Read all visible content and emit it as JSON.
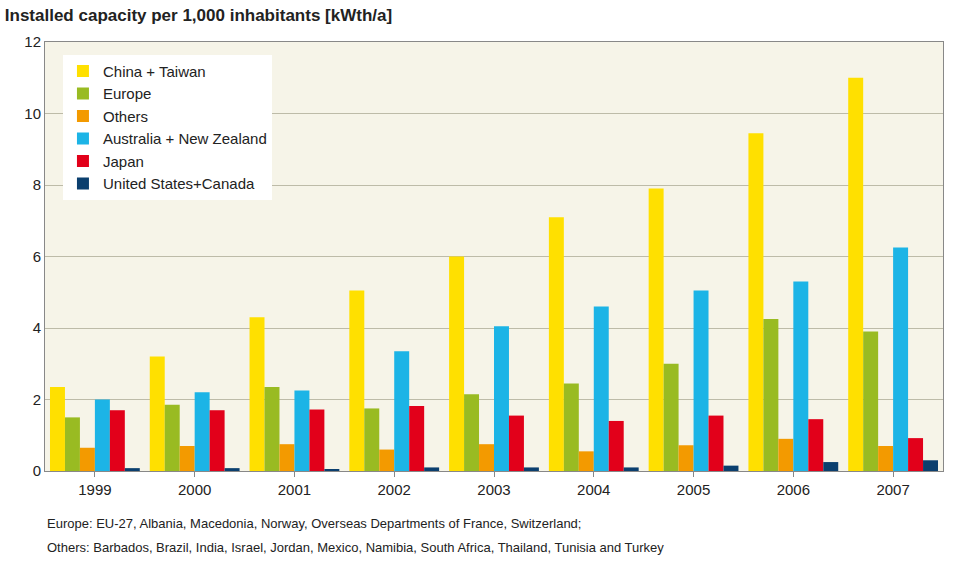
{
  "chart_data": {
    "type": "bar",
    "title": "Installed capacity per 1,000 inhabitants [kWth/a]",
    "categories": [
      "1999",
      "2000",
      "2001",
      "2002",
      "2003",
      "2004",
      "2005",
      "2006",
      "2007"
    ],
    "series": [
      {
        "name": "China + Taiwan",
        "color": "#FFE000",
        "values": [
          2.35,
          3.2,
          4.3,
          5.05,
          6.0,
          7.1,
          7.9,
          9.45,
          11.0
        ]
      },
      {
        "name": "Europe",
        "color": "#99BB22",
        "values": [
          1.5,
          1.85,
          2.35,
          1.75,
          2.15,
          2.45,
          3.0,
          4.25,
          3.9
        ]
      },
      {
        "name": "Others",
        "color": "#F39A00",
        "values": [
          0.65,
          0.7,
          0.75,
          0.6,
          0.75,
          0.55,
          0.72,
          0.9,
          0.7
        ]
      },
      {
        "name": "Australia + New Zealand",
        "color": "#1CB4E6",
        "values": [
          2.0,
          2.2,
          2.25,
          3.35,
          4.05,
          4.6,
          5.05,
          5.3,
          6.25
        ]
      },
      {
        "name": "Japan",
        "color": "#E2001A",
        "values": [
          1.7,
          1.7,
          1.72,
          1.82,
          1.55,
          1.4,
          1.55,
          1.45,
          0.92
        ]
      },
      {
        "name": "United States+Canada",
        "color": "#0B3F6E",
        "values": [
          0.08,
          0.08,
          0.05,
          0.1,
          0.1,
          0.1,
          0.15,
          0.25,
          0.3
        ]
      }
    ],
    "ylim": [
      0,
      12
    ],
    "yticks": [
      0,
      2,
      4,
      6,
      8,
      10,
      12
    ],
    "grid": true,
    "legend": "upper left",
    "notes": [
      "Europe: EU-27, Albania, Macedonia, Norway, Overseas Departments of France, Switzerland;",
      "Others: Barbados, Brazil, India, Israel, Jordan, Mexico, Namibia, South Africa, Thailand, Tunisia and Turkey"
    ]
  }
}
